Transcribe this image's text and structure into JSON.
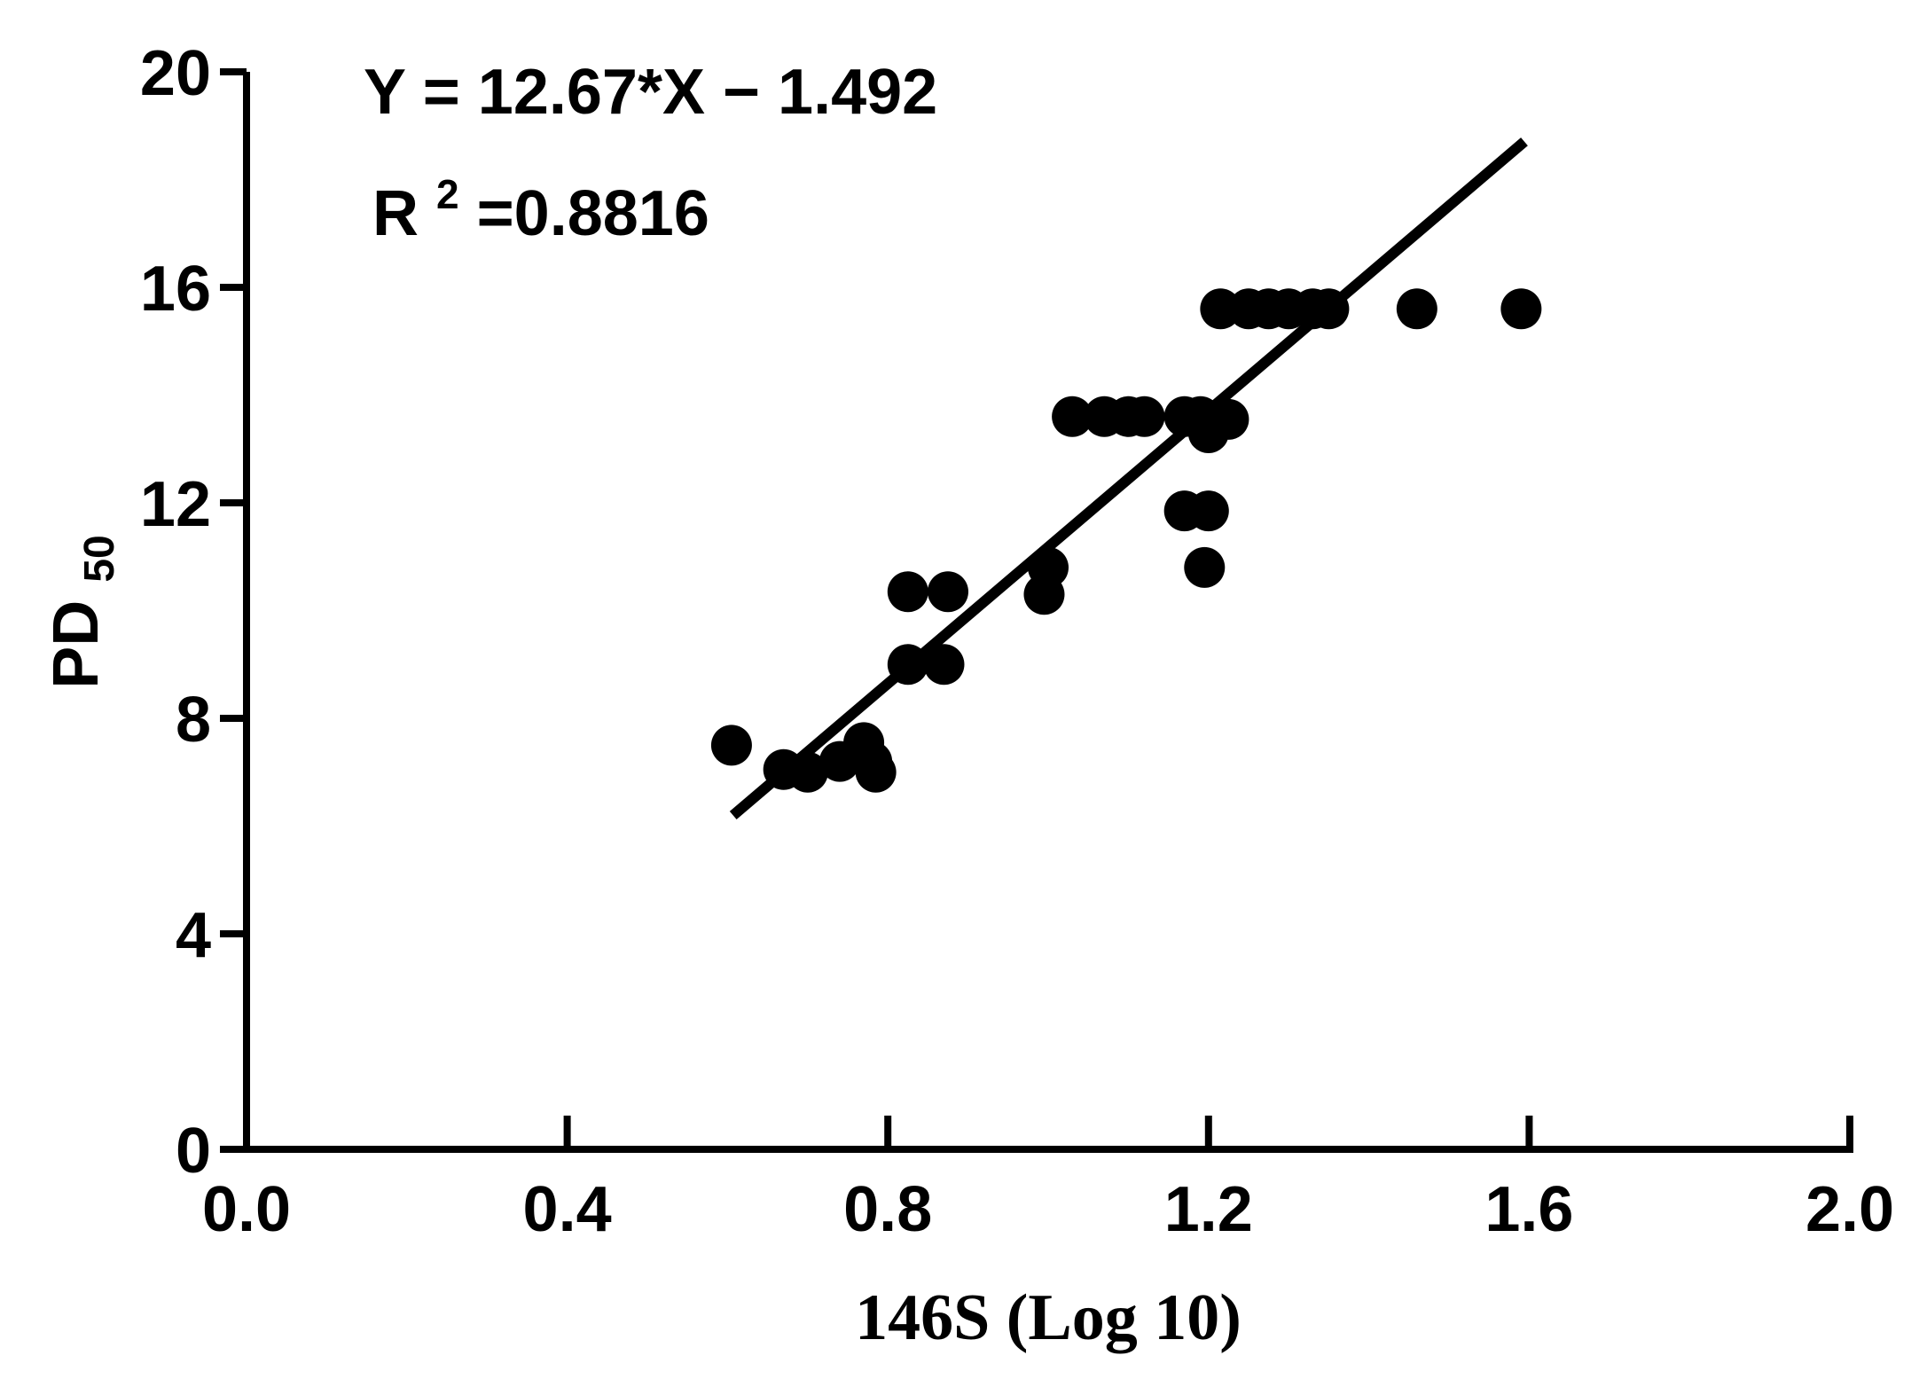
{
  "chart_data": {
    "type": "scatter",
    "title": "",
    "xlabel": "146S (Log 10)",
    "ylabel": {
      "main": "PD",
      "sub": "50"
    },
    "xlim": [
      0.0,
      2.0
    ],
    "ylim": [
      0,
      20
    ],
    "x_ticks": [
      "0.0",
      "0.4",
      "0.8",
      "1.2",
      "1.6",
      "2.0"
    ],
    "y_ticks": [
      "0",
      "4",
      "8",
      "12",
      "16",
      "20"
    ],
    "grid": false,
    "annotations": {
      "equation": "Y = 12.67*X − 1.492",
      "r2_prefix": "R",
      "r2_sup": "2",
      "r2_value": "=0.8816"
    },
    "fit_line": {
      "slope": 12.67,
      "intercept": -1.492,
      "x_range": [
        0.607,
        1.594
      ]
    },
    "series": [
      {
        "points": [
          {
            "x": 0.605,
            "y": 7.5
          },
          {
            "x": 0.67,
            "y": 7.05
          },
          {
            "x": 0.7,
            "y": 7.0
          },
          {
            "x": 0.74,
            "y": 7.2
          },
          {
            "x": 0.77,
            "y": 7.55
          },
          {
            "x": 0.78,
            "y": 7.2
          },
          {
            "x": 0.785,
            "y": 7.0
          },
          {
            "x": 0.825,
            "y": 10.35
          },
          {
            "x": 0.875,
            "y": 10.35
          },
          {
            "x": 0.825,
            "y": 9.0
          },
          {
            "x": 0.87,
            "y": 9.0
          },
          {
            "x": 1.0,
            "y": 10.8
          },
          {
            "x": 0.995,
            "y": 10.3
          },
          {
            "x": 1.03,
            "y": 13.6
          },
          {
            "x": 1.07,
            "y": 13.6
          },
          {
            "x": 1.1,
            "y": 13.6
          },
          {
            "x": 1.12,
            "y": 13.6
          },
          {
            "x": 1.17,
            "y": 13.6
          },
          {
            "x": 1.19,
            "y": 13.6
          },
          {
            "x": 1.2,
            "y": 13.3
          },
          {
            "x": 1.225,
            "y": 13.55
          },
          {
            "x": 1.17,
            "y": 11.85
          },
          {
            "x": 1.2,
            "y": 11.85
          },
          {
            "x": 1.195,
            "y": 10.8
          },
          {
            "x": 1.215,
            "y": 15.6
          },
          {
            "x": 1.25,
            "y": 15.6
          },
          {
            "x": 1.275,
            "y": 15.6
          },
          {
            "x": 1.3,
            "y": 15.6
          },
          {
            "x": 1.33,
            "y": 15.6
          },
          {
            "x": 1.35,
            "y": 15.6
          },
          {
            "x": 1.46,
            "y": 15.6
          },
          {
            "x": 1.59,
            "y": 15.6
          }
        ]
      }
    ]
  }
}
